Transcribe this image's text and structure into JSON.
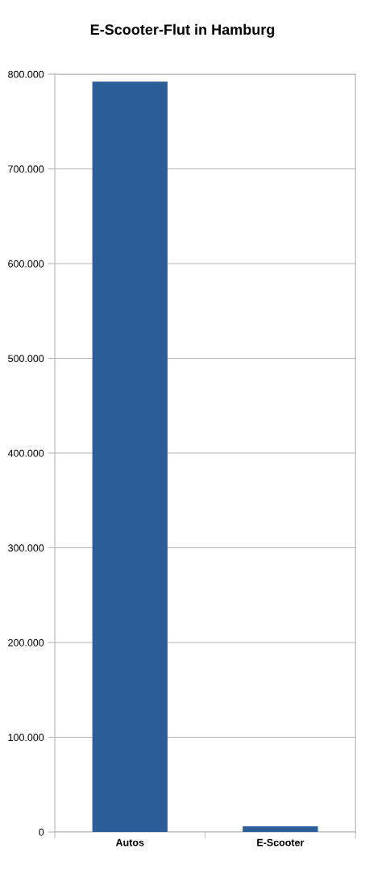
{
  "chart_data": {
    "type": "bar",
    "title": "E-Scooter-Flut in Hamburg",
    "categories": [
      "Autos",
      "E-Scooter"
    ],
    "values": [
      792000,
      6000
    ],
    "color": "#2c5f98",
    "ylim": [
      0,
      800000
    ],
    "yticks": [
      {
        "value": 0,
        "label": "0"
      },
      {
        "value": 100000,
        "label": "100.000"
      },
      {
        "value": 200000,
        "label": "200.000"
      },
      {
        "value": 300000,
        "label": "300.000"
      },
      {
        "value": 400000,
        "label": "400.000"
      },
      {
        "value": 500000,
        "label": "500.000"
      },
      {
        "value": 600000,
        "label": "600.000"
      },
      {
        "value": 700000,
        "label": "700.000"
      },
      {
        "value": 800000,
        "label": "800.000"
      }
    ],
    "grid": "y",
    "legend": false
  }
}
